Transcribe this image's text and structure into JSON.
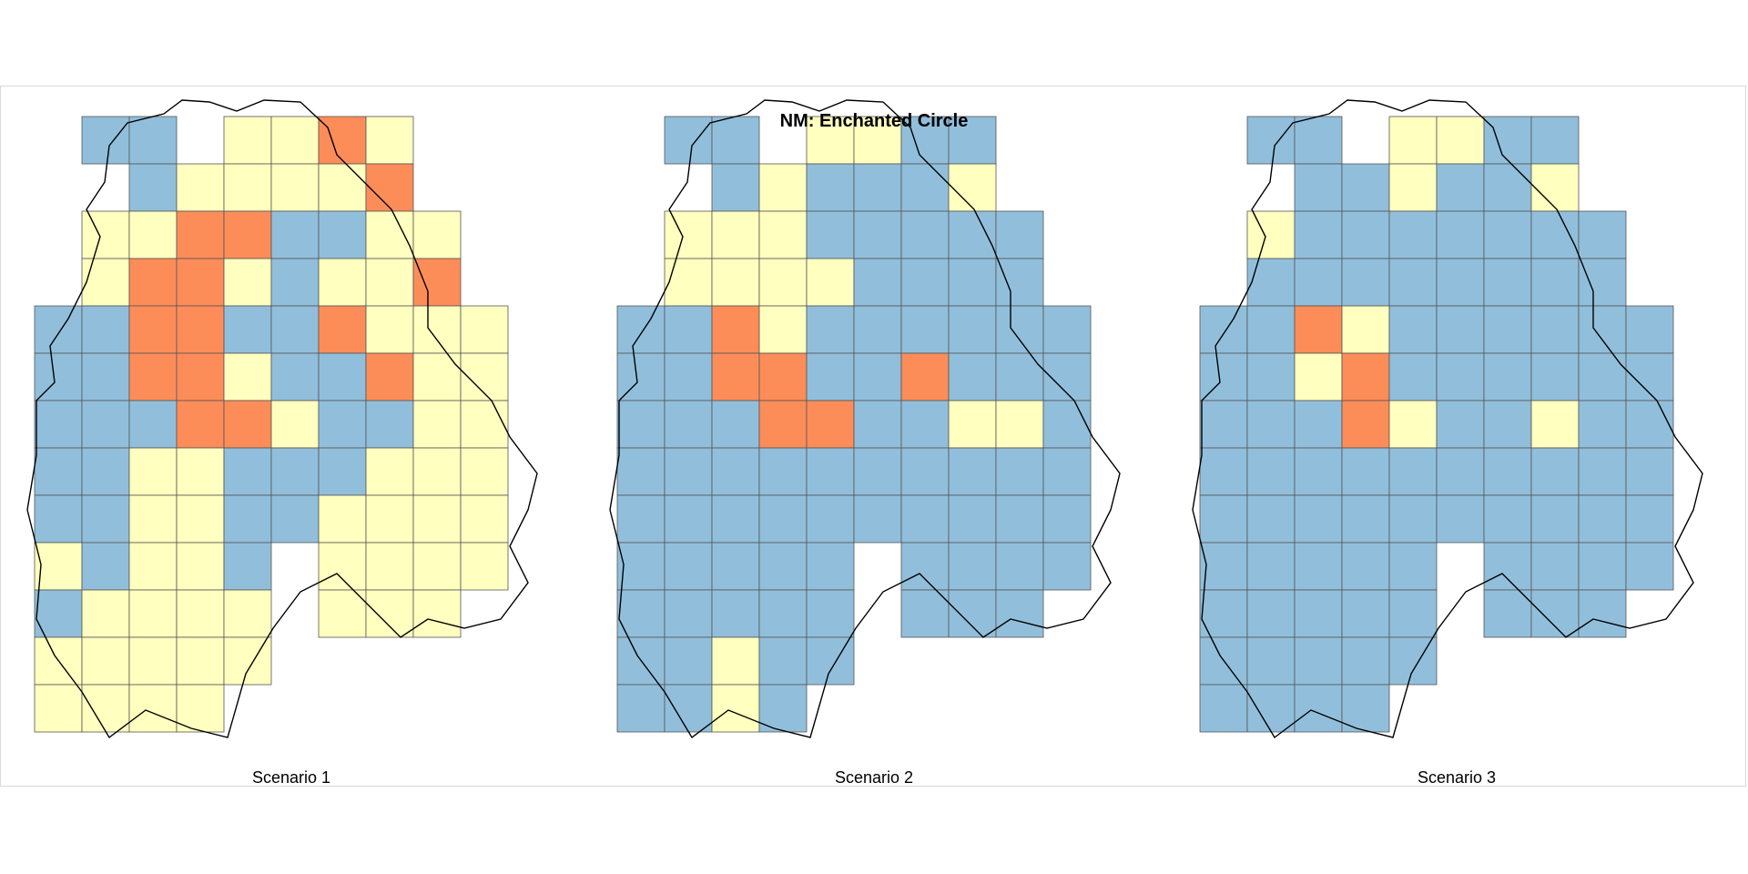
{
  "title": "NM: Enchanted Circle",
  "colors": {
    "high": "#fc8d59",
    "medium": "#ffffbf",
    "low": "#91bfdb",
    "cell_border": "#555555",
    "outline": "#000000"
  },
  "panels": [
    {
      "caption": "Scenario 1",
      "cells": [
        "xLLxMMHMxx",
        "xxLMMMMHxx",
        "xMMHHLLMMx",
        "xMHHMLMMHx",
        "LLHHLLHMMM",
        "LLHHMLLHMM",
        "LLLHHMLLMM",
        "LLMMLLLMMM",
        "LLMMLLMMMM",
        "MLMMLxMMMM",
        "LMMMMxMMMx",
        "MMMMMxxxxx",
        "MMMMxxxxxx"
      ]
    },
    {
      "caption": "Scenario 2",
      "cells": [
        "xLLxMMLLxx",
        "xxLMLLLMxx",
        "xMMMLLLLLx",
        "xMMMMLLLLx",
        "LLHMLLLLLL",
        "LLHHLLHLLL",
        "LLLHHLLMML",
        "LLLLLLLLLL",
        "LLLLLLLLLL",
        "LLLLLxLLLL",
        "LLLLLxLLLx",
        "LLMLLxxxxx",
        "LLMLxxxxxx"
      ]
    },
    {
      "caption": "Scenario 3",
      "cells": [
        "xLLxMMLLxx",
        "xxLLMLLMxx",
        "xMLLLLLLLx",
        "xLLLLLLLLx",
        "LLHMLLLLLL",
        "LLMHLLLLLL",
        "LLLHMLLMLL",
        "LLLLLLLLLL",
        "LLLLLLLLLL",
        "LLLLLxLLLL",
        "LLLLLxLLLx",
        "LLLLLxxxxx",
        "LLLLxxxxxx"
      ]
    }
  ]
}
